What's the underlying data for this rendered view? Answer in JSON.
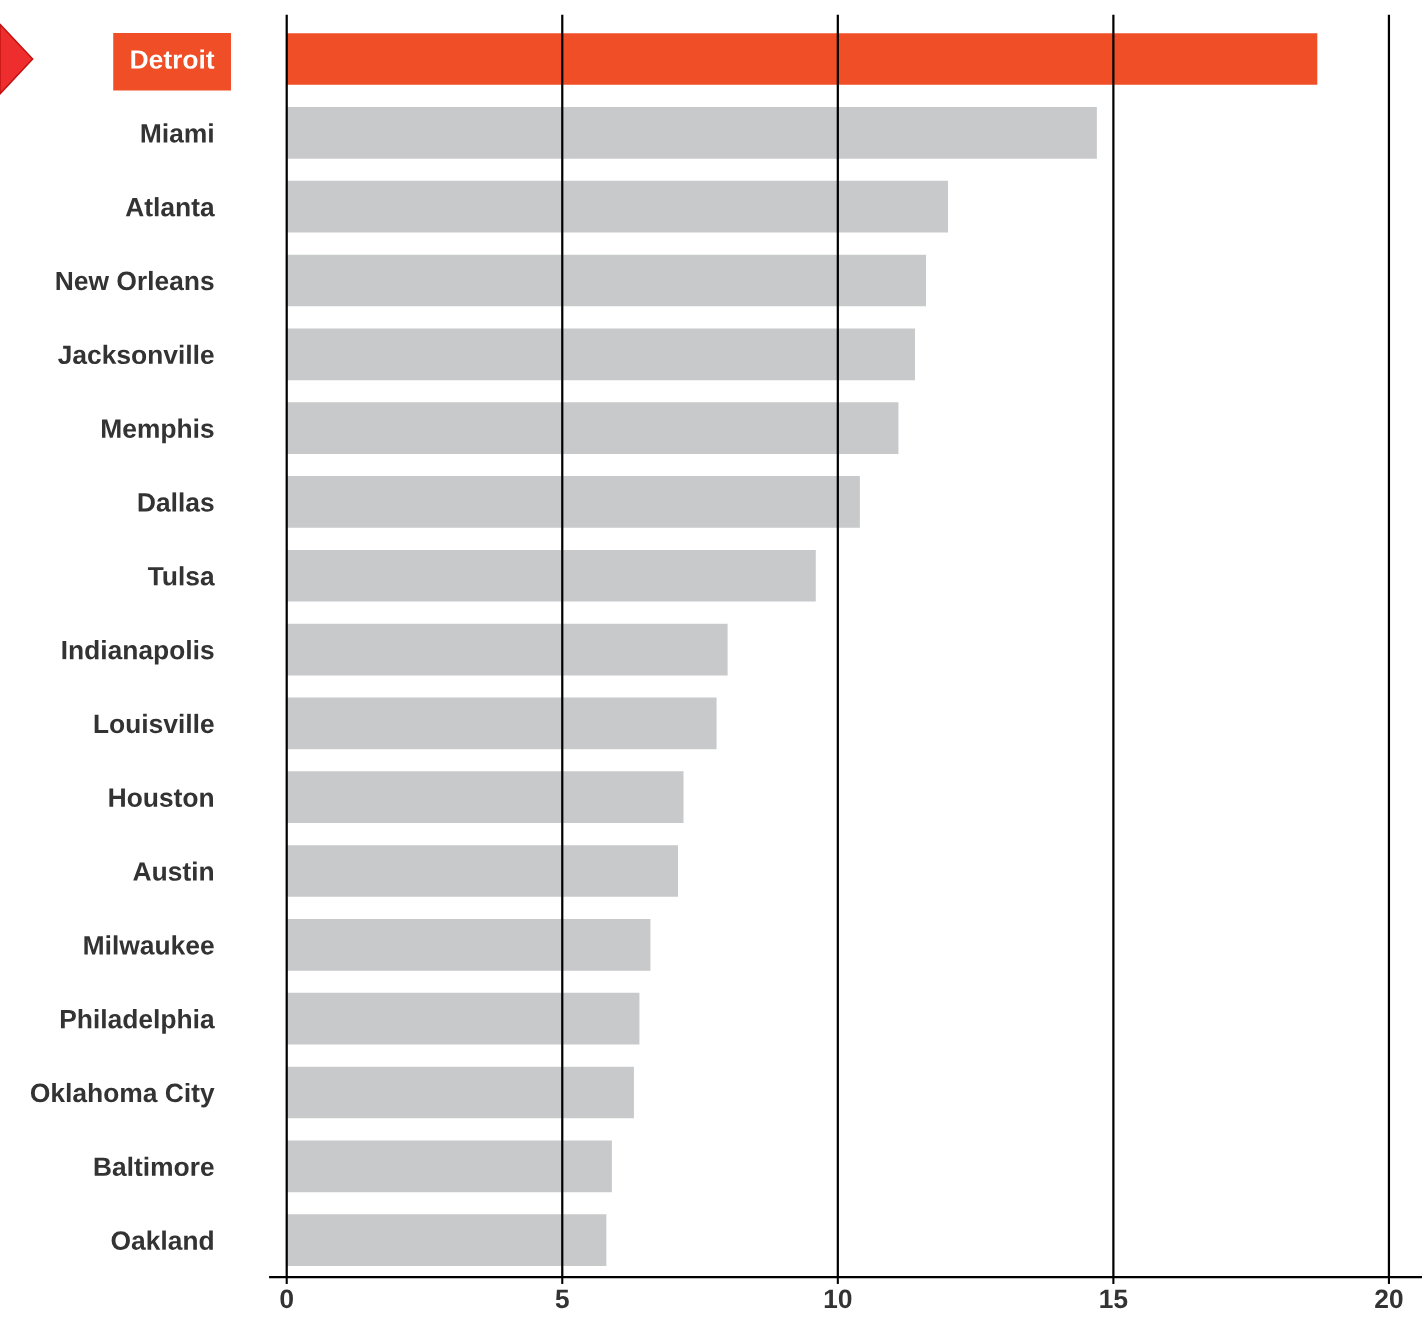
{
  "chart_data": {
    "type": "bar",
    "orientation": "horizontal",
    "categories": [
      "Detroit",
      "Miami",
      "Atlanta",
      "New Orleans",
      "Jacksonville",
      "Memphis",
      "Dallas",
      "Tulsa",
      "Indianapolis",
      "Louisville",
      "Houston",
      "Austin",
      "Milwaukee",
      "Philadelphia",
      "Oklahoma City",
      "Baltimore",
      "Oakland"
    ],
    "values": [
      18.7,
      14.7,
      12.0,
      11.6,
      11.4,
      11.1,
      10.4,
      9.6,
      8.0,
      7.8,
      7.2,
      7.1,
      6.6,
      6.4,
      6.3,
      5.9,
      5.8
    ],
    "colors": [
      "#f04e27",
      "#c8c9cb",
      "#c8c9cb",
      "#c8c9cb",
      "#c8c9cb",
      "#c8c9cb",
      "#c8c9cb",
      "#c8c9cb",
      "#c8c9cb",
      "#c8c9cb",
      "#c8c9cb",
      "#c8c9cb",
      "#c8c9cb",
      "#c8c9cb",
      "#c8c9cb",
      "#c8c9cb",
      "#c8c9cb"
    ],
    "xlim": [
      -0.3,
      20.6
    ],
    "xticks": [
      0,
      5,
      10,
      15,
      20
    ],
    "grid": "x"
  }
}
